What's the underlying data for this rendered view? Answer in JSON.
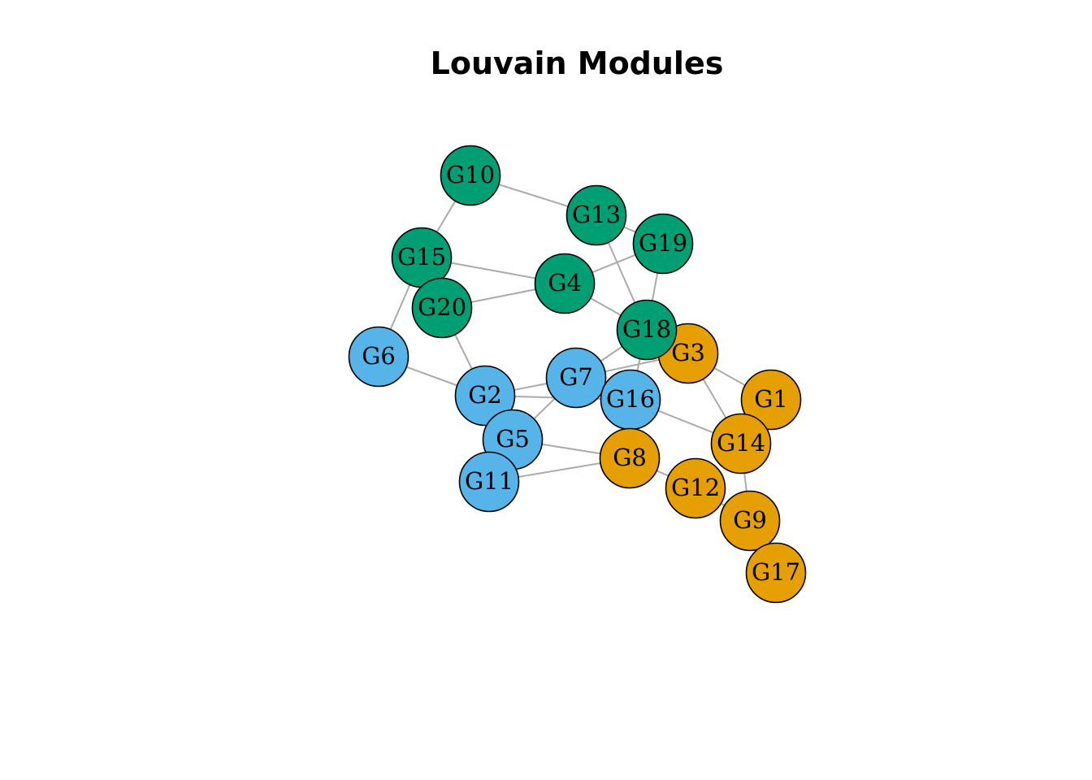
{
  "title": "Louvain Modules",
  "colors": {
    "module_green": "#009E73",
    "module_blue": "#56B4E9",
    "module_orange": "#E69F00",
    "edge": "#aaaaaa",
    "node_border": "#000000"
  },
  "nodes": [
    {
      "id": "G1",
      "label": "G1",
      "module": "orange"
    },
    {
      "id": "G2",
      "label": "G2",
      "module": "blue"
    },
    {
      "id": "G3",
      "label": "G3",
      "module": "orange"
    },
    {
      "id": "G4",
      "label": "G4",
      "module": "green"
    },
    {
      "id": "G5",
      "label": "G5",
      "module": "blue"
    },
    {
      "id": "G6",
      "label": "G6",
      "module": "blue"
    },
    {
      "id": "G7",
      "label": "G7",
      "module": "blue"
    },
    {
      "id": "G8",
      "label": "G8",
      "module": "orange"
    },
    {
      "id": "G9",
      "label": "G9",
      "module": "orange"
    },
    {
      "id": "G10",
      "label": "G10",
      "module": "green"
    },
    {
      "id": "G11",
      "label": "G11",
      "module": "blue"
    },
    {
      "id": "G12",
      "label": "G12",
      "module": "orange"
    },
    {
      "id": "G13",
      "label": "G13",
      "module": "green"
    },
    {
      "id": "G14",
      "label": "G14",
      "module": "orange"
    },
    {
      "id": "G15",
      "label": "G15",
      "module": "green"
    },
    {
      "id": "G16",
      "label": "G16",
      "module": "blue"
    },
    {
      "id": "G17",
      "label": "G17",
      "module": "orange"
    },
    {
      "id": "G18",
      "label": "G18",
      "module": "green"
    },
    {
      "id": "G19",
      "label": "G19",
      "module": "green"
    },
    {
      "id": "G20",
      "label": "G20",
      "module": "green"
    }
  ],
  "edges": [
    [
      "G10",
      "G13"
    ],
    [
      "G10",
      "G15"
    ],
    [
      "G13",
      "G19"
    ],
    [
      "G13",
      "G18"
    ],
    [
      "G15",
      "G4"
    ],
    [
      "G15",
      "G6"
    ],
    [
      "G20",
      "G4"
    ],
    [
      "G20",
      "G2"
    ],
    [
      "G4",
      "G19"
    ],
    [
      "G4",
      "G18"
    ],
    [
      "G19",
      "G18"
    ],
    [
      "G6",
      "G2"
    ],
    [
      "G2",
      "G7"
    ],
    [
      "G2",
      "G16"
    ],
    [
      "G7",
      "G5"
    ],
    [
      "G7",
      "G18"
    ],
    [
      "G7",
      "G3"
    ],
    [
      "G18",
      "G16"
    ],
    [
      "G5",
      "G8"
    ],
    [
      "G11",
      "G8"
    ],
    [
      "G8",
      "G12"
    ],
    [
      "G16",
      "G14"
    ],
    [
      "G3",
      "G1"
    ],
    [
      "G3",
      "G14"
    ],
    [
      "G14",
      "G9"
    ],
    [
      "G12",
      "G9"
    ],
    [
      "G9",
      "G17"
    ]
  ]
}
